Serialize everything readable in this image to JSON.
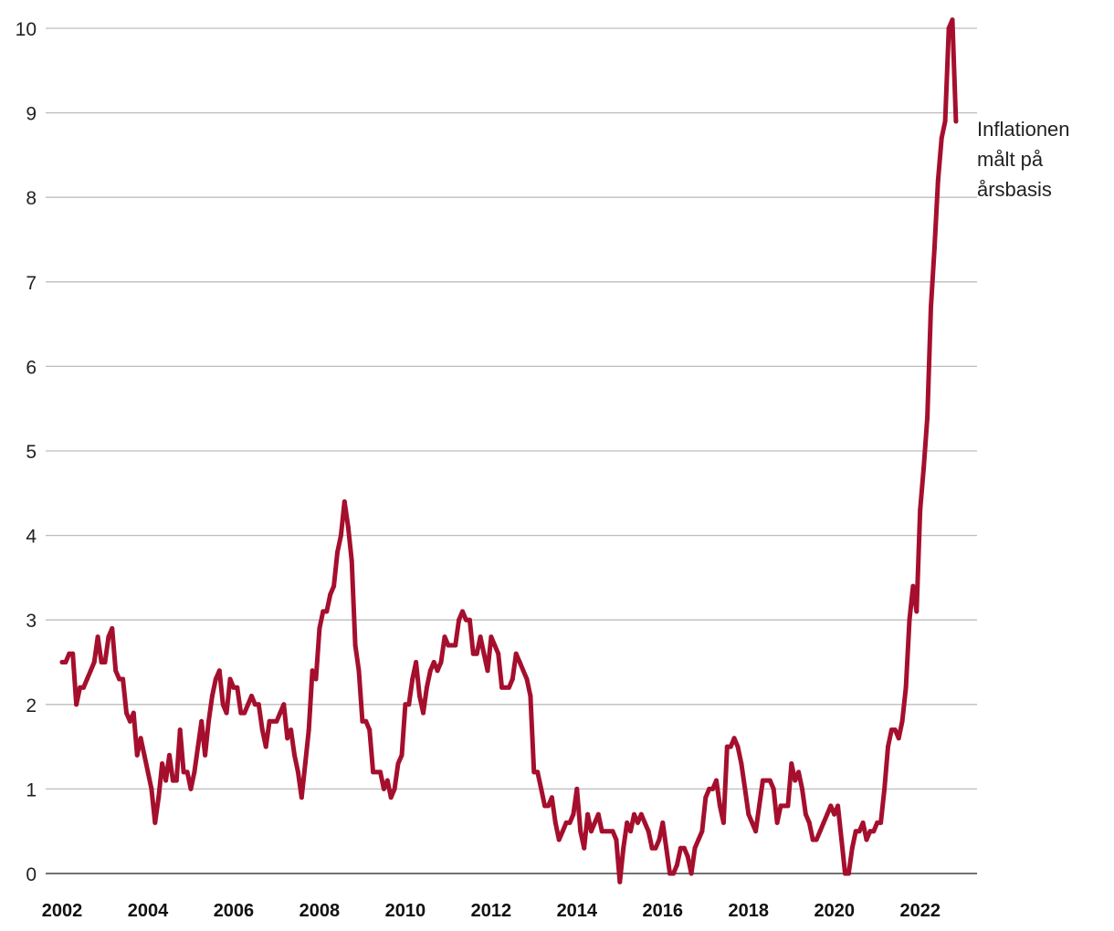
{
  "chart_data": {
    "type": "line",
    "title": "",
    "xlabel": "",
    "ylabel": "",
    "ylim": [
      0,
      10
    ],
    "xlim": [
      2002,
      2022.9
    ],
    "y_ticks": [
      "0",
      "1",
      "2",
      "3",
      "4",
      "5",
      "6",
      "7",
      "8",
      "9",
      "10"
    ],
    "x_ticks": [
      "2002",
      "2004",
      "2006",
      "2008",
      "2010",
      "2012",
      "2014",
      "2016",
      "2018",
      "2020",
      "2022"
    ],
    "grid": true,
    "colors": {
      "line": "#a50f2d",
      "grid": "#bdbdbd",
      "axis": "#444444"
    },
    "annotation": [
      "Inflationen",
      "målt på",
      "årsbasis"
    ],
    "series": [
      {
        "name": "Inflationen målt på årsbasis",
        "x": [
          2002.0,
          2002.083,
          2002.167,
          2002.25,
          2002.333,
          2002.417,
          2002.5,
          2002.583,
          2002.667,
          2002.75,
          2002.833,
          2002.917,
          2003.0,
          2003.083,
          2003.167,
          2003.25,
          2003.333,
          2003.417,
          2003.5,
          2003.583,
          2003.667,
          2003.75,
          2003.833,
          2003.917,
          2004.0,
          2004.083,
          2004.167,
          2004.25,
          2004.333,
          2004.417,
          2004.5,
          2004.583,
          2004.667,
          2004.75,
          2004.833,
          2004.917,
          2005.0,
          2005.083,
          2005.167,
          2005.25,
          2005.333,
          2005.417,
          2005.5,
          2005.583,
          2005.667,
          2005.75,
          2005.833,
          2005.917,
          2006.0,
          2006.083,
          2006.167,
          2006.25,
          2006.333,
          2006.417,
          2006.5,
          2006.583,
          2006.667,
          2006.75,
          2006.833,
          2006.917,
          2007.0,
          2007.083,
          2007.167,
          2007.25,
          2007.333,
          2007.417,
          2007.5,
          2007.583,
          2007.667,
          2007.75,
          2007.833,
          2007.917,
          2008.0,
          2008.083,
          2008.167,
          2008.25,
          2008.333,
          2008.417,
          2008.5,
          2008.583,
          2008.667,
          2008.75,
          2008.833,
          2008.917,
          2009.0,
          2009.083,
          2009.167,
          2009.25,
          2009.333,
          2009.417,
          2009.5,
          2009.583,
          2009.667,
          2009.75,
          2009.833,
          2009.917,
          2010.0,
          2010.083,
          2010.167,
          2010.25,
          2010.333,
          2010.417,
          2010.5,
          2010.583,
          2010.667,
          2010.75,
          2010.833,
          2010.917,
          2011.0,
          2011.083,
          2011.167,
          2011.25,
          2011.333,
          2011.417,
          2011.5,
          2011.583,
          2011.667,
          2011.75,
          2011.833,
          2011.917,
          2012.0,
          2012.083,
          2012.167,
          2012.25,
          2012.333,
          2012.417,
          2012.5,
          2012.583,
          2012.667,
          2012.75,
          2012.833,
          2012.917,
          2013.0,
          2013.083,
          2013.167,
          2013.25,
          2013.333,
          2013.417,
          2013.5,
          2013.583,
          2013.667,
          2013.75,
          2013.833,
          2013.917,
          2014.0,
          2014.083,
          2014.167,
          2014.25,
          2014.333,
          2014.417,
          2014.5,
          2014.583,
          2014.667,
          2014.75,
          2014.833,
          2014.917,
          2015.0,
          2015.083,
          2015.167,
          2015.25,
          2015.333,
          2015.417,
          2015.5,
          2015.583,
          2015.667,
          2015.75,
          2015.833,
          2015.917,
          2016.0,
          2016.083,
          2016.167,
          2016.25,
          2016.333,
          2016.417,
          2016.5,
          2016.583,
          2016.667,
          2016.75,
          2016.833,
          2016.917,
          2017.0,
          2017.083,
          2017.167,
          2017.25,
          2017.333,
          2017.417,
          2017.5,
          2017.583,
          2017.667,
          2017.75,
          2017.833,
          2017.917,
          2018.0,
          2018.083,
          2018.167,
          2018.25,
          2018.333,
          2018.417,
          2018.5,
          2018.583,
          2018.667,
          2018.75,
          2018.833,
          2018.917,
          2019.0,
          2019.083,
          2019.167,
          2019.25,
          2019.333,
          2019.417,
          2019.5,
          2019.583,
          2019.667,
          2019.75,
          2019.833,
          2019.917,
          2020.0,
          2020.083,
          2020.167,
          2020.25,
          2020.333,
          2020.417,
          2020.5,
          2020.583,
          2020.667,
          2020.75,
          2020.833,
          2020.917,
          2021.0,
          2021.083,
          2021.167,
          2021.25,
          2021.333,
          2021.417,
          2021.5,
          2021.583,
          2021.667,
          2021.75,
          2021.833,
          2021.917,
          2022.0,
          2022.083,
          2022.167,
          2022.25,
          2022.333,
          2022.417,
          2022.5,
          2022.583,
          2022.667,
          2022.75,
          2022.833
        ],
        "values": [
          2.5,
          2.5,
          2.6,
          2.6,
          2.0,
          2.2,
          2.2,
          2.3,
          2.4,
          2.5,
          2.8,
          2.5,
          2.5,
          2.8,
          2.9,
          2.4,
          2.3,
          2.3,
          1.9,
          1.8,
          1.9,
          1.4,
          1.6,
          1.4,
          1.2,
          1.0,
          0.6,
          0.9,
          1.3,
          1.1,
          1.4,
          1.1,
          1.1,
          1.7,
          1.2,
          1.2,
          1.0,
          1.2,
          1.5,
          1.8,
          1.4,
          1.8,
          2.1,
          2.3,
          2.4,
          2.0,
          1.9,
          2.3,
          2.2,
          2.2,
          1.9,
          1.9,
          2.0,
          2.1,
          2.0,
          2.0,
          1.7,
          1.5,
          1.8,
          1.8,
          1.8,
          1.9,
          2.0,
          1.6,
          1.7,
          1.4,
          1.2,
          0.9,
          1.3,
          1.7,
          2.4,
          2.3,
          2.9,
          3.1,
          3.1,
          3.3,
          3.4,
          3.8,
          4.0,
          4.4,
          4.1,
          3.7,
          2.7,
          2.4,
          1.8,
          1.8,
          1.7,
          1.2,
          1.2,
          1.2,
          1.0,
          1.1,
          0.9,
          1.0,
          1.3,
          1.4,
          2.0,
          2.0,
          2.3,
          2.5,
          2.1,
          1.9,
          2.2,
          2.4,
          2.5,
          2.4,
          2.5,
          2.8,
          2.7,
          2.7,
          2.7,
          3.0,
          3.1,
          3.0,
          3.0,
          2.6,
          2.6,
          2.8,
          2.6,
          2.4,
          2.8,
          2.7,
          2.6,
          2.2,
          2.2,
          2.2,
          2.3,
          2.6,
          2.5,
          2.4,
          2.3,
          2.1,
          1.2,
          1.2,
          1.0,
          0.8,
          0.8,
          0.9,
          0.6,
          0.4,
          0.5,
          0.6,
          0.6,
          0.7,
          1.0,
          0.5,
          0.3,
          0.7,
          0.5,
          0.6,
          0.7,
          0.5,
          0.5,
          0.5,
          0.5,
          0.4,
          -0.1,
          0.3,
          0.6,
          0.5,
          0.7,
          0.6,
          0.7,
          0.6,
          0.5,
          0.3,
          0.3,
          0.4,
          0.6,
          0.3,
          0.0,
          0.0,
          0.1,
          0.3,
          0.3,
          0.2,
          0.0,
          0.3,
          0.4,
          0.5,
          0.9,
          1.0,
          1.0,
          1.1,
          0.8,
          0.6,
          1.5,
          1.5,
          1.6,
          1.5,
          1.3,
          1.0,
          0.7,
          0.6,
          0.5,
          0.8,
          1.1,
          1.1,
          1.1,
          1.0,
          0.6,
          0.8,
          0.8,
          0.8,
          1.3,
          1.1,
          1.2,
          1.0,
          0.7,
          0.6,
          0.4,
          0.4,
          0.5,
          0.6,
          0.7,
          0.8,
          0.7,
          0.8,
          0.4,
          0.0,
          0.0,
          0.3,
          0.5,
          0.5,
          0.6,
          0.4,
          0.5,
          0.5,
          0.6,
          0.6,
          1.0,
          1.5,
          1.7,
          1.7,
          1.6,
          1.8,
          2.2,
          3.0,
          3.4,
          3.1,
          4.3,
          4.8,
          5.4,
          6.7,
          7.4,
          8.2,
          8.7,
          8.9,
          10.0,
          10.1,
          8.9
        ]
      }
    ]
  }
}
